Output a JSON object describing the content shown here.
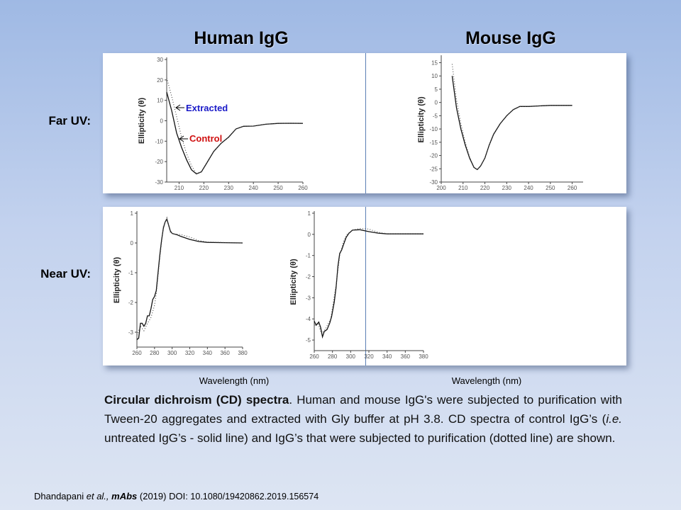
{
  "columns": {
    "human": "Human IgG",
    "mouse": "Mouse IgG"
  },
  "rows": {
    "far": "Far UV:",
    "near": "Near UV:"
  },
  "xlabel_below": "Wavelength  (nm)",
  "annotations": {
    "extracted": "Extracted",
    "control": "Control",
    "extracted_color": "#1a1ac8",
    "control_color": "#d01010"
  },
  "caption": {
    "bold": "Circular dichroism (CD) spectra",
    "part1": ". Human and mouse IgG's were subjected to purification with Tween-20 aggregates and extracted with Gly buffer at pH 3.8. CD spectra of control IgG’s (",
    "italic": "i.e.",
    "part2": " untreated IgG’s - solid line) and IgG’s that were subjected to purification (dotted line) are shown."
  },
  "footer": {
    "author": "Dhandapani ",
    "etal": "et al.,",
    "journal": "mAbs",
    "year": " (2019) DOI: ",
    "doi": " 10.1080/19420862.2019.156574"
  },
  "chart_data": [
    {
      "id": "human-far",
      "type": "line",
      "ylabel": "Ellipticity (θ)",
      "xlim": [
        205,
        260
      ],
      "ylim": [
        -30,
        30
      ],
      "xticks": [
        210,
        220,
        230,
        240,
        250,
        260
      ],
      "yticks": [
        -30,
        -20,
        -10,
        0,
        10,
        20,
        30
      ],
      "series": [
        {
          "name": "Control",
          "style": "solid",
          "x": [
            205,
            207,
            209,
            211,
            213,
            215,
            217,
            219,
            221,
            224,
            227,
            230,
            233,
            236,
            240,
            245,
            250,
            255,
            260
          ],
          "y": [
            14,
            5,
            -6,
            -13,
            -19,
            -24,
            -26,
            -25,
            -21,
            -15,
            -11,
            -8,
            -4,
            -2.7,
            -2.6,
            -1.7,
            -1.3,
            -1.2,
            -1.3
          ]
        },
        {
          "name": "Extracted",
          "style": "dotted",
          "x": [
            205,
            207,
            209,
            211,
            213,
            215,
            217,
            219,
            221,
            224,
            227,
            230,
            233,
            236,
            240,
            245,
            250,
            255,
            260
          ],
          "y": [
            21,
            12,
            2,
            -8,
            -16,
            -22,
            -26,
            -25,
            -21,
            -15,
            -11,
            -8,
            -4,
            -2.7,
            -2.6,
            -1.7,
            -1.3,
            -1.2,
            -1.3
          ]
        }
      ]
    },
    {
      "id": "mouse-far",
      "type": "line",
      "ylabel": "Ellipticity (θ)",
      "xlim": [
        200,
        265
      ],
      "ylim": [
        -30,
        17
      ],
      "xticks": [
        200,
        210,
        220,
        230,
        240,
        250,
        260
      ],
      "yticks": [
        -30,
        -25,
        -20,
        -15,
        -10,
        -5,
        0,
        5,
        10,
        15
      ],
      "series": [
        {
          "name": "Control",
          "style": "solid",
          "x": [
            205,
            207,
            209,
            211,
            213,
            215,
            216.5,
            218,
            220,
            222,
            224,
            227,
            230,
            233,
            236,
            240,
            245,
            250,
            260
          ],
          "y": [
            10,
            -2,
            -10,
            -16,
            -21,
            -24.5,
            -25.3,
            -24,
            -21,
            -16,
            -12,
            -8,
            -5,
            -2.7,
            -1.5,
            -1.5,
            -1.3,
            -1.1,
            -1.1
          ]
        },
        {
          "name": "Extracted",
          "style": "dotted",
          "x": [
            205,
            207,
            209,
            211,
            213,
            215,
            216.5,
            218,
            220,
            222,
            224,
            227,
            230,
            233,
            236,
            240,
            245,
            250,
            260
          ],
          "y": [
            14.5,
            1,
            -8,
            -15,
            -20.5,
            -24.5,
            -25.3,
            -24,
            -21,
            -16,
            -12,
            -8,
            -5,
            -2.7,
            -1.5,
            -1.5,
            -1.3,
            -1.1,
            -1.1
          ]
        }
      ]
    },
    {
      "id": "human-near",
      "type": "line",
      "ylabel": "Ellipticity (θ)",
      "xlim": [
        260,
        380
      ],
      "ylim": [
        -3.5,
        1
      ],
      "xticks": [
        260,
        280,
        300,
        320,
        340,
        360,
        380
      ],
      "yticks": [
        -3,
        -2,
        -1,
        0,
        1
      ],
      "series": [
        {
          "name": "Control",
          "style": "solid",
          "x": [
            260,
            262,
            264,
            266,
            268,
            270,
            272,
            274,
            276,
            278,
            280,
            282,
            284,
            286,
            288,
            290,
            292,
            294,
            296,
            298,
            300,
            305,
            310,
            320,
            330,
            340,
            360,
            380
          ],
          "y": [
            -3.25,
            -3.2,
            -2.7,
            -2.7,
            -2.8,
            -2.7,
            -2.45,
            -2.45,
            -2.2,
            -1.9,
            -1.8,
            -1.6,
            -1.0,
            -0.4,
            0.1,
            0.5,
            0.7,
            0.8,
            0.6,
            0.4,
            0.32,
            0.28,
            0.22,
            0.12,
            0.05,
            0.02,
            0.01,
            0
          ]
        },
        {
          "name": "Extracted",
          "style": "dotted",
          "x": [
            260,
            264,
            268,
            272,
            276,
            280,
            282,
            286,
            290,
            294,
            298,
            302,
            310,
            320,
            330,
            340,
            380
          ],
          "y": [
            -3.1,
            -2.8,
            -2.95,
            -2.7,
            -2.5,
            -2.1,
            -1.7,
            -0.5,
            0.55,
            0.85,
            0.35,
            0.3,
            0.28,
            0.2,
            0.08,
            0.03,
            0
          ]
        }
      ]
    },
    {
      "id": "mouse-near",
      "type": "line",
      "ylabel": "Ellipticity (θ)",
      "xlim": [
        260,
        380
      ],
      "ylim": [
        -5.5,
        1
      ],
      "xticks": [
        260,
        280,
        300,
        320,
        340,
        360,
        380
      ],
      "yticks": [
        -5,
        -4,
        -3,
        -2,
        -1,
        0,
        1
      ],
      "series": [
        {
          "name": "Control",
          "style": "solid",
          "x": [
            260,
            262,
            265,
            267,
            269,
            271,
            274,
            277,
            279,
            282,
            284,
            286,
            288,
            290,
            292,
            295,
            298,
            302,
            310,
            320,
            330,
            340,
            380
          ],
          "y": [
            -4.1,
            -4.3,
            -4.15,
            -4.4,
            -4.85,
            -4.6,
            -4.5,
            -4.2,
            -3.9,
            -3.2,
            -2.5,
            -1.5,
            -0.9,
            -0.75,
            -0.5,
            -0.15,
            0.05,
            0.2,
            0.22,
            0.13,
            0.06,
            0.02,
            0.02
          ]
        },
        {
          "name": "Extracted",
          "style": "dotted",
          "x": [
            260,
            264,
            268,
            272,
            278,
            284,
            288,
            292,
            296,
            302,
            310,
            320,
            330,
            340,
            380
          ],
          "y": [
            -4.3,
            -4.2,
            -4.7,
            -4.5,
            -4.0,
            -2.4,
            -1.0,
            -0.35,
            0.0,
            0.2,
            0.28,
            0.25,
            0.1,
            0.03,
            0.02
          ]
        }
      ]
    }
  ]
}
